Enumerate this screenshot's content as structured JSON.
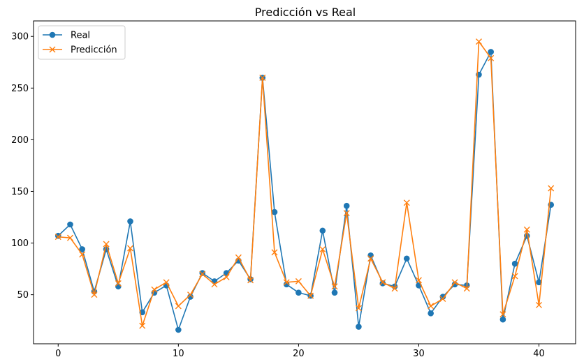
{
  "chart_data": {
    "type": "line",
    "title": "Predicción vs Real",
    "xlabel": "",
    "ylabel": "",
    "xlim": [
      -2.05,
      43.05
    ],
    "ylim": [
      2.5,
      315
    ],
    "xticks": [
      0,
      10,
      20,
      30,
      40
    ],
    "yticks": [
      50,
      100,
      150,
      200,
      250,
      300
    ],
    "grid": false,
    "legend_position": "top-left",
    "x": [
      0,
      1,
      2,
      3,
      4,
      5,
      6,
      7,
      8,
      9,
      10,
      11,
      12,
      13,
      14,
      15,
      16,
      17,
      18,
      19,
      20,
      21,
      22,
      23,
      24,
      25,
      26,
      27,
      28,
      29,
      30,
      31,
      32,
      33,
      34,
      35,
      36,
      37,
      38,
      39,
      40,
      41
    ],
    "series": [
      {
        "name": "Real",
        "color": "#1f77b4",
        "marker": "circle",
        "values": [
          107,
          118,
          94,
          53,
          94,
          58,
          121,
          33,
          52,
          59,
          16,
          48,
          71,
          63,
          71,
          83,
          65,
          260,
          130,
          60,
          52,
          49,
          112,
          52,
          136,
          19,
          88,
          61,
          58,
          85,
          59,
          32,
          48,
          60,
          59,
          263,
          285,
          26,
          80,
          107,
          62,
          137
        ]
      },
      {
        "name": "Predicción",
        "color": "#ff7f0e",
        "marker": "x",
        "values": [
          106,
          105,
          89,
          50,
          99,
          61,
          95,
          20,
          55,
          62,
          39,
          50,
          70,
          60,
          67,
          86,
          64,
          260,
          91,
          62,
          63,
          49,
          94,
          58,
          129,
          37,
          85,
          62,
          56,
          139,
          64,
          39,
          46,
          62,
          56,
          295,
          279,
          31,
          68,
          113,
          40,
          153
        ]
      }
    ]
  }
}
